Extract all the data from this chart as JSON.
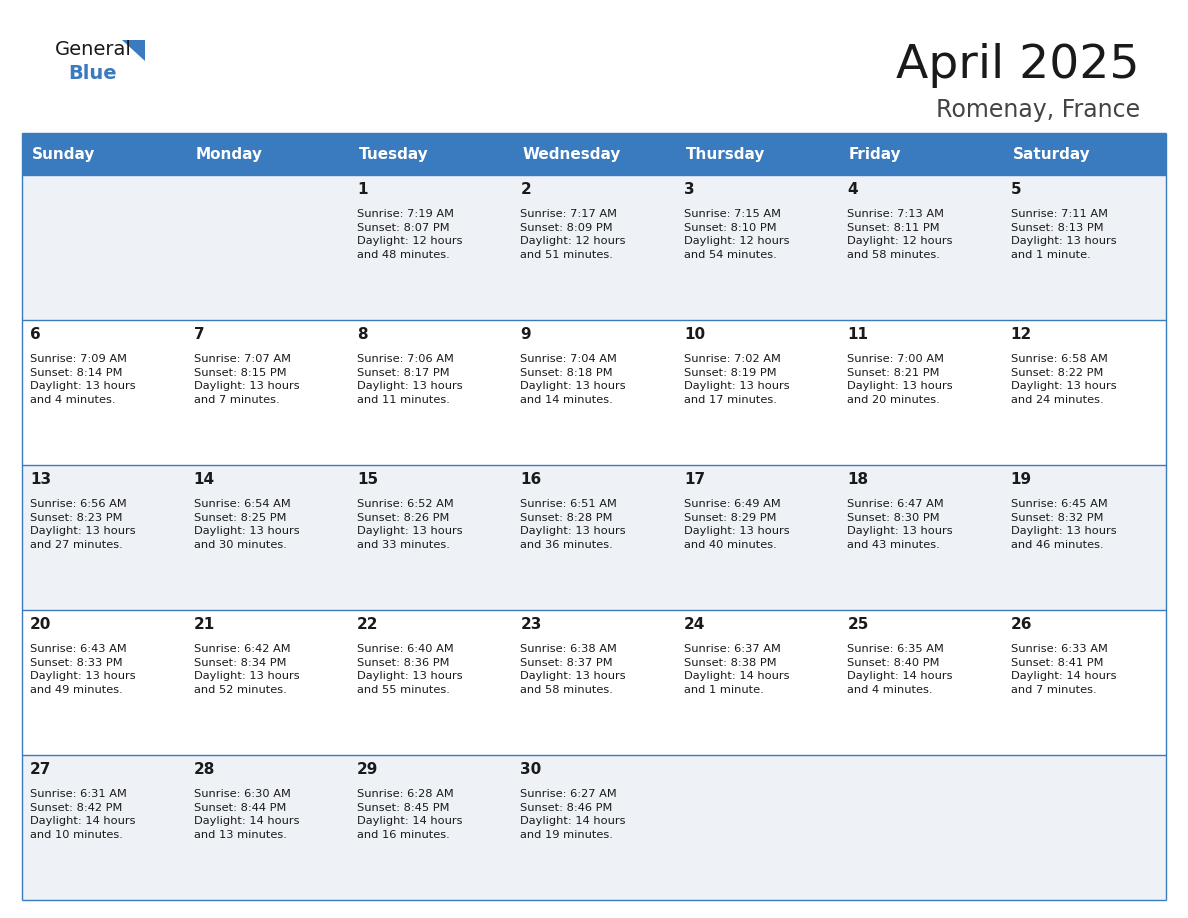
{
  "title": "April 2025",
  "subtitle": "Romenay, France",
  "header_bg": "#3a7abf",
  "header_text": "#ffffff",
  "row_bg_odd": "#eef2f7",
  "row_bg_even": "#ffffff",
  "border_color": "#3a7abf",
  "day_names": [
    "Sunday",
    "Monday",
    "Tuesday",
    "Wednesday",
    "Thursday",
    "Friday",
    "Saturday"
  ],
  "calendar": [
    [
      {
        "day": "",
        "text": ""
      },
      {
        "day": "",
        "text": ""
      },
      {
        "day": "1",
        "text": "Sunrise: 7:19 AM\nSunset: 8:07 PM\nDaylight: 12 hours\nand 48 minutes."
      },
      {
        "day": "2",
        "text": "Sunrise: 7:17 AM\nSunset: 8:09 PM\nDaylight: 12 hours\nand 51 minutes."
      },
      {
        "day": "3",
        "text": "Sunrise: 7:15 AM\nSunset: 8:10 PM\nDaylight: 12 hours\nand 54 minutes."
      },
      {
        "day": "4",
        "text": "Sunrise: 7:13 AM\nSunset: 8:11 PM\nDaylight: 12 hours\nand 58 minutes."
      },
      {
        "day": "5",
        "text": "Sunrise: 7:11 AM\nSunset: 8:13 PM\nDaylight: 13 hours\nand 1 minute."
      }
    ],
    [
      {
        "day": "6",
        "text": "Sunrise: 7:09 AM\nSunset: 8:14 PM\nDaylight: 13 hours\nand 4 minutes."
      },
      {
        "day": "7",
        "text": "Sunrise: 7:07 AM\nSunset: 8:15 PM\nDaylight: 13 hours\nand 7 minutes."
      },
      {
        "day": "8",
        "text": "Sunrise: 7:06 AM\nSunset: 8:17 PM\nDaylight: 13 hours\nand 11 minutes."
      },
      {
        "day": "9",
        "text": "Sunrise: 7:04 AM\nSunset: 8:18 PM\nDaylight: 13 hours\nand 14 minutes."
      },
      {
        "day": "10",
        "text": "Sunrise: 7:02 AM\nSunset: 8:19 PM\nDaylight: 13 hours\nand 17 minutes."
      },
      {
        "day": "11",
        "text": "Sunrise: 7:00 AM\nSunset: 8:21 PM\nDaylight: 13 hours\nand 20 minutes."
      },
      {
        "day": "12",
        "text": "Sunrise: 6:58 AM\nSunset: 8:22 PM\nDaylight: 13 hours\nand 24 minutes."
      }
    ],
    [
      {
        "day": "13",
        "text": "Sunrise: 6:56 AM\nSunset: 8:23 PM\nDaylight: 13 hours\nand 27 minutes."
      },
      {
        "day": "14",
        "text": "Sunrise: 6:54 AM\nSunset: 8:25 PM\nDaylight: 13 hours\nand 30 minutes."
      },
      {
        "day": "15",
        "text": "Sunrise: 6:52 AM\nSunset: 8:26 PM\nDaylight: 13 hours\nand 33 minutes."
      },
      {
        "day": "16",
        "text": "Sunrise: 6:51 AM\nSunset: 8:28 PM\nDaylight: 13 hours\nand 36 minutes."
      },
      {
        "day": "17",
        "text": "Sunrise: 6:49 AM\nSunset: 8:29 PM\nDaylight: 13 hours\nand 40 minutes."
      },
      {
        "day": "18",
        "text": "Sunrise: 6:47 AM\nSunset: 8:30 PM\nDaylight: 13 hours\nand 43 minutes."
      },
      {
        "day": "19",
        "text": "Sunrise: 6:45 AM\nSunset: 8:32 PM\nDaylight: 13 hours\nand 46 minutes."
      }
    ],
    [
      {
        "day": "20",
        "text": "Sunrise: 6:43 AM\nSunset: 8:33 PM\nDaylight: 13 hours\nand 49 minutes."
      },
      {
        "day": "21",
        "text": "Sunrise: 6:42 AM\nSunset: 8:34 PM\nDaylight: 13 hours\nand 52 minutes."
      },
      {
        "day": "22",
        "text": "Sunrise: 6:40 AM\nSunset: 8:36 PM\nDaylight: 13 hours\nand 55 minutes."
      },
      {
        "day": "23",
        "text": "Sunrise: 6:38 AM\nSunset: 8:37 PM\nDaylight: 13 hours\nand 58 minutes."
      },
      {
        "day": "24",
        "text": "Sunrise: 6:37 AM\nSunset: 8:38 PM\nDaylight: 14 hours\nand 1 minute."
      },
      {
        "day": "25",
        "text": "Sunrise: 6:35 AM\nSunset: 8:40 PM\nDaylight: 14 hours\nand 4 minutes."
      },
      {
        "day": "26",
        "text": "Sunrise: 6:33 AM\nSunset: 8:41 PM\nDaylight: 14 hours\nand 7 minutes."
      }
    ],
    [
      {
        "day": "27",
        "text": "Sunrise: 6:31 AM\nSunset: 8:42 PM\nDaylight: 14 hours\nand 10 minutes."
      },
      {
        "day": "28",
        "text": "Sunrise: 6:30 AM\nSunset: 8:44 PM\nDaylight: 14 hours\nand 13 minutes."
      },
      {
        "day": "29",
        "text": "Sunrise: 6:28 AM\nSunset: 8:45 PM\nDaylight: 14 hours\nand 16 minutes."
      },
      {
        "day": "30",
        "text": "Sunrise: 6:27 AM\nSunset: 8:46 PM\nDaylight: 14 hours\nand 19 minutes."
      },
      {
        "day": "",
        "text": ""
      },
      {
        "day": "",
        "text": ""
      },
      {
        "day": "",
        "text": ""
      }
    ]
  ],
  "title_color": "#1a1a1a",
  "subtitle_color": "#444444",
  "cell_text_color": "#1a1a1a",
  "day_num_color": "#1a1a1a",
  "logo_general_color": "#1a1a1a",
  "logo_blue_color": "#3a7abf",
  "logo_triangle_color": "#3a7abf"
}
